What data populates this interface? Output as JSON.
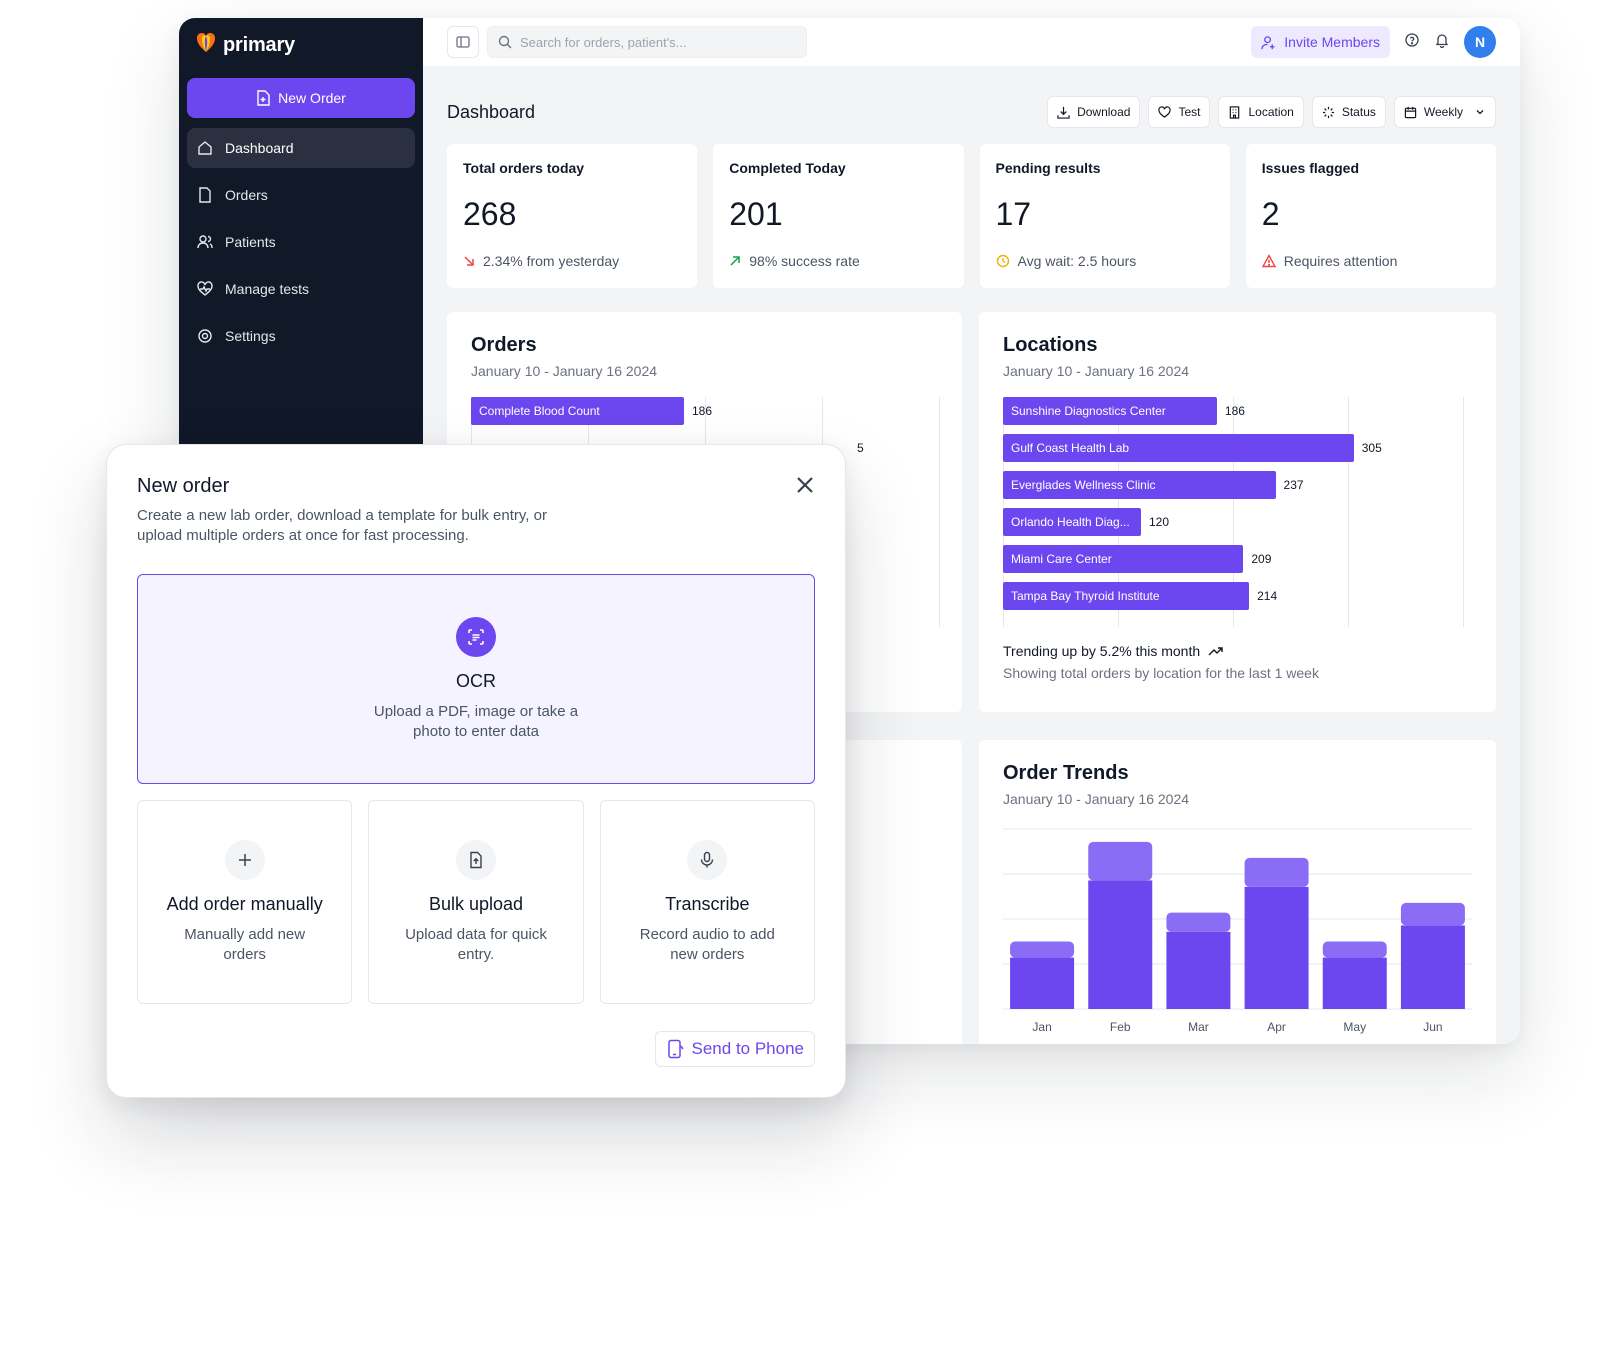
{
  "app": {
    "brand": "primary",
    "sidebar": {
      "new_order_label": "New Order",
      "items": [
        {
          "label": "Dashboard",
          "icon": "home-icon",
          "active": true
        },
        {
          "label": "Orders",
          "icon": "file-icon"
        },
        {
          "label": "Patients",
          "icon": "users-icon"
        },
        {
          "label": "Manage tests",
          "icon": "heart-pulse-icon"
        },
        {
          "label": "Settings",
          "icon": "gear-icon"
        }
      ]
    },
    "topbar": {
      "search_placeholder": "Search for orders, patient's...",
      "invite_label": "Invite Members",
      "avatar_initial": "N"
    },
    "page_title": "Dashboard",
    "filters": [
      {
        "label": "Download",
        "icon": "download-icon"
      },
      {
        "label": "Test",
        "icon": "heart-icon"
      },
      {
        "label": "Location",
        "icon": "building-icon"
      },
      {
        "label": "Status",
        "icon": "loader-icon"
      },
      {
        "label": "Weekly",
        "icon": "calendar-icon"
      }
    ],
    "stats": [
      {
        "label": "Total orders today",
        "value": "268",
        "sub": "2.34% from yesterday",
        "sub_icon": "arrow-down-right-icon",
        "sub_color": "#ef4444"
      },
      {
        "label": "Completed Today",
        "value": "201",
        "sub": "98% success rate",
        "sub_icon": "arrow-up-right-icon",
        "sub_color": "#16a34a"
      },
      {
        "label": "Pending results",
        "value": "17",
        "sub": "Avg wait: 2.5 hours",
        "sub_icon": "clock-icon",
        "sub_color": "#eab308"
      },
      {
        "label": "Issues flagged",
        "value": "2",
        "sub": "Requires attention",
        "sub_icon": "warning-icon",
        "sub_color": "#ef4444"
      }
    ],
    "orders_panel": {
      "title": "Orders",
      "subtitle": "January 10 - January 16 2024",
      "visible_bar": {
        "label": "Complete Blood Count",
        "value": "186"
      },
      "partial_value_fragment": "5"
    },
    "locations_panel": {
      "title": "Locations",
      "subtitle": "January 10 - January 16 2024",
      "trend": "Trending up by 5.2% this month",
      "note": "Showing total orders by location for the last 1 week"
    },
    "trends_panel": {
      "title": "Order Trends",
      "subtitle": "January 10 - January 16 2024"
    }
  },
  "chart_data": [
    {
      "type": "bar",
      "orientation": "horizontal",
      "title": "Locations",
      "categories": [
        "Sunshine Diagnostics Center",
        "Gulf Coast Health Lab",
        "Everglades Wellness Clinic",
        "Orlando Health Diag...",
        "Miami Care Center",
        "Tampa Bay Thyroid Institute"
      ],
      "values": [
        186,
        305,
        237,
        120,
        209,
        214
      ],
      "xlim": [
        0,
        400
      ],
      "grid": true
    },
    {
      "type": "bar",
      "stacked": true,
      "title": "Order Trends",
      "categories": [
        "Jan",
        "Feb",
        "Mar",
        "Apr",
        "May",
        "Jun"
      ],
      "series": [
        {
          "values": [
            80,
            200,
            120,
            190,
            80,
            130
          ],
          "color": "#6c47f0"
        },
        {
          "values": [
            25,
            60,
            30,
            45,
            25,
            35
          ],
          "color": "#8b6cf5"
        }
      ],
      "ylim": [
        0,
        280
      ],
      "grid": true
    }
  ],
  "modal": {
    "title": "New order",
    "description": "Create a new lab order, download a template for bulk entry, or upload multiple orders at once for fast processing.",
    "ocr": {
      "title": "OCR",
      "description": "Upload a PDF, image or take a photo to enter data",
      "icon": "scan-text-icon"
    },
    "options": [
      {
        "title": "Add order manually",
        "description": "Manually add new orders",
        "icon": "plus-icon"
      },
      {
        "title": "Bulk upload",
        "description": "Upload data for quick entry.",
        "icon": "file-upload-icon"
      },
      {
        "title": "Transcribe",
        "description": "Record audio to add new orders",
        "icon": "microphone-icon"
      }
    ],
    "send_label": "Send to Phone"
  },
  "colors": {
    "accent": "#6c47f0",
    "sidebar": "#111827",
    "accent_light": "#8b6cf5"
  }
}
